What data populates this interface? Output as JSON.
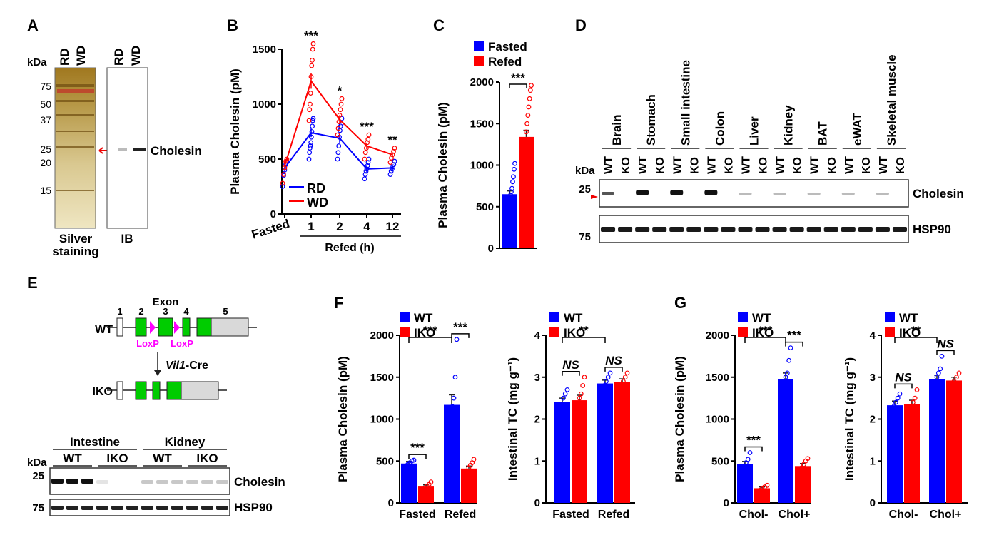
{
  "panels": {
    "A": "A",
    "B": "B",
    "C": "C",
    "D": "D",
    "E": "E",
    "F": "F",
    "G": "G"
  },
  "colors": {
    "blue": "#0000ff",
    "red": "#ff0000",
    "green": "#00cc00",
    "magenta": "#ff00ff",
    "gray": "#d9d9d9"
  },
  "panelA": {
    "kda": "kDa",
    "lanes": [
      "RD",
      "WD",
      "RD",
      "WD"
    ],
    "markers": [
      "75",
      "50",
      "37",
      "25",
      "20",
      "15"
    ],
    "band_label": "Cholesin",
    "captions": {
      "silver_1": "Silver",
      "silver_2": "staining",
      "ib": "IB"
    }
  },
  "chart_data": [
    {
      "id": "B",
      "type": "line",
      "ylabel": "Plasma Cholesin (pM)",
      "xlabel": "Refed (h)",
      "categories": [
        "Fasted",
        "1",
        "2",
        "4",
        "12"
      ],
      "ylim": [
        0,
        1500
      ],
      "yticks": [
        "0",
        "500",
        "1000",
        "1500"
      ],
      "legend": [
        {
          "name": "RD",
          "color": "#0000ff"
        },
        {
          "name": "WD",
          "color": "#ff0000"
        }
      ],
      "series": [
        {
          "name": "RD",
          "color": "#0000ff",
          "values": [
            420,
            740,
            690,
            410,
            420
          ],
          "sem": [
            40,
            40,
            40,
            30,
            20
          ]
        },
        {
          "name": "WD",
          "color": "#ff0000",
          "values": [
            440,
            1210,
            860,
            620,
            540
          ],
          "sem": [
            40,
            70,
            40,
            30,
            20
          ]
        }
      ],
      "sig": [
        "",
        "***",
        "*",
        "***",
        "**"
      ],
      "points": {
        "RD": [
          [
            250,
            350,
            400,
            450,
            480
          ],
          [
            500,
            560,
            600,
            620,
            650,
            700,
            750,
            800,
            850,
            870
          ],
          [
            500,
            560,
            620,
            700,
            760,
            800,
            820,
            870
          ],
          [
            320,
            360,
            390,
            410,
            440,
            470,
            500
          ],
          [
            360,
            390,
            410,
            430,
            450,
            480
          ]
        ],
        "WD": [
          [
            280,
            360,
            420,
            480,
            500
          ],
          [
            850,
            950,
            1000,
            1100,
            1250,
            1350,
            1400,
            1500,
            1550
          ],
          [
            720,
            780,
            840,
            900,
            950,
            1000,
            1050
          ],
          [
            500,
            560,
            600,
            650,
            680,
            720
          ],
          [
            470,
            510,
            540,
            570,
            600
          ]
        ]
      }
    },
    {
      "id": "C",
      "type": "bar",
      "ylabel": "Plasma Cholesin (pM)",
      "categories": [
        "Fasted",
        "Refed"
      ],
      "ylim": [
        0,
        2000
      ],
      "yticks": [
        "0",
        "500",
        "1000",
        "1500",
        "2000"
      ],
      "legend": [
        {
          "name": "Fasted",
          "color": "#0000ff"
        },
        {
          "name": "Refed",
          "color": "#ff0000"
        }
      ],
      "values": [
        650,
        1340
      ],
      "sem": [
        40,
        80
      ],
      "sig": "***",
      "points": [
        [
          150,
          250,
          350,
          420,
          480,
          520,
          560,
          600,
          640,
          680,
          720,
          800,
          860,
          950,
          1020
        ],
        [
          900,
          1000,
          1100,
          1200,
          1250,
          1300,
          1400,
          1500,
          1600,
          1700,
          1800,
          1900,
          1960
        ]
      ]
    },
    {
      "id": "F1",
      "type": "bar",
      "ylabel": "Plasma Cholesin (pM)",
      "categories": [
        "Fasted",
        "Refed"
      ],
      "ylim": [
        0,
        2000
      ],
      "yticks": [
        "0",
        "500",
        "1000",
        "1500",
        "2000"
      ],
      "legend": [
        {
          "name": "WT",
          "color": "#0000ff"
        },
        {
          "name": "IKO",
          "color": "#ff0000"
        }
      ],
      "series": [
        {
          "name": "WT",
          "color": "#0000ff",
          "values": [
            470,
            1170
          ],
          "sem": [
            25,
            120
          ],
          "points": [
            [
              420,
              440,
              460,
              480,
              500,
              510
            ],
            [
              800,
              900,
              1000,
              1050,
              1150,
              1250,
              1500,
              1950
            ]
          ]
        },
        {
          "name": "IKO",
          "color": "#ff0000",
          "values": [
            195,
            410
          ],
          "sem": [
            20,
            30
          ],
          "points": [
            [
              120,
              150,
              180,
              200,
              220,
              250
            ],
            [
              300,
              350,
              380,
              420,
              450,
              480,
              520
            ]
          ]
        }
      ],
      "sig_within": [
        "***",
        "***"
      ],
      "sig_between": "***"
    },
    {
      "id": "F2",
      "type": "bar",
      "ylabel": "Intestinal TC (mg g⁻¹)",
      "categories": [
        "Fasted",
        "Refed"
      ],
      "ylim": [
        0,
        4
      ],
      "yticks": [
        "0",
        "1",
        "2",
        "3",
        "4"
      ],
      "legend": [
        {
          "name": "WT",
          "color": "#0000ff"
        },
        {
          "name": "IKO",
          "color": "#ff0000"
        }
      ],
      "series": [
        {
          "name": "WT",
          "color": "#0000ff",
          "values": [
            2.4,
            2.85
          ],
          "sem": [
            0.1,
            0.08
          ],
          "points": [
            [
              1.9,
              2.1,
              2.3,
              2.5,
              2.6,
              2.7
            ],
            [
              2.6,
              2.7,
              2.8,
              2.9,
              3.0,
              3.1
            ]
          ]
        },
        {
          "name": "IKO",
          "color": "#ff0000",
          "values": [
            2.45,
            2.88
          ],
          "sem": [
            0.12,
            0.08
          ],
          "points": [
            [
              1.8,
              2.0,
              2.3,
              2.5,
              2.6,
              2.8,
              3.0
            ],
            [
              2.6,
              2.7,
              2.8,
              2.9,
              3.0,
              3.1
            ]
          ]
        }
      ],
      "sig_within": [
        "NS",
        "NS"
      ],
      "sig_between": "**"
    },
    {
      "id": "G1",
      "type": "bar",
      "ylabel": "Plasma Cholesin (pM)",
      "categories": [
        "Chol-",
        "Chol+"
      ],
      "ylim": [
        0,
        2000
      ],
      "yticks": [
        "0",
        "500",
        "1000",
        "1500",
        "2000"
      ],
      "legend": [
        {
          "name": "WT",
          "color": "#0000ff"
        },
        {
          "name": "IKO",
          "color": "#ff0000"
        }
      ],
      "series": [
        {
          "name": "WT",
          "color": "#0000ff",
          "values": [
            460,
            1480
          ],
          "sem": [
            35,
            70
          ],
          "points": [
            [
              330,
              380,
              440,
              480,
              520,
              600
            ],
            [
              1200,
              1300,
              1450,
              1500,
              1550,
              1700,
              1850
            ]
          ]
        },
        {
          "name": "IKO",
          "color": "#ff0000",
          "values": [
            175,
            440
          ],
          "sem": [
            15,
            30
          ],
          "points": [
            [
              130,
              150,
              170,
              190,
              210
            ],
            [
              300,
              360,
              420,
              460,
              500,
              530
            ]
          ]
        }
      ],
      "sig_within": [
        "***",
        "***"
      ],
      "sig_between": "***"
    },
    {
      "id": "G2",
      "type": "bar",
      "ylabel": "Intestinal TC (mg g⁻¹)",
      "categories": [
        "Chol-",
        "Chol+"
      ],
      "ylim": [
        0,
        4
      ],
      "yticks": [
        "0",
        "1",
        "2",
        "3",
        "4"
      ],
      "legend": [
        {
          "name": "WT",
          "color": "#0000ff"
        },
        {
          "name": "IKO",
          "color": "#ff0000"
        }
      ],
      "series": [
        {
          "name": "WT",
          "color": "#0000ff",
          "values": [
            2.33,
            2.95
          ],
          "sem": [
            0.1,
            0.1
          ],
          "points": [
            [
              2.0,
              2.2,
              2.3,
              2.4,
              2.5,
              2.6
            ],
            [
              2.6,
              2.8,
              2.9,
              3.0,
              3.1,
              3.2,
              3.5
            ]
          ]
        },
        {
          "name": "IKO",
          "color": "#ff0000",
          "values": [
            2.35,
            2.92
          ],
          "sem": [
            0.1,
            0.08
          ],
          "points": [
            [
              1.9,
              2.1,
              2.3,
              2.4,
              2.5,
              2.7
            ],
            [
              2.7,
              2.8,
              2.9,
              3.0,
              3.1
            ]
          ]
        }
      ],
      "sig_within": [
        "NS",
        "NS"
      ],
      "sig_between": "**"
    }
  ],
  "panelD": {
    "tissues": [
      "Brain",
      "Stomach",
      "Small intestine",
      "Colon",
      "Liver",
      "Kidney",
      "BAT",
      "eWAT",
      "Skeletal muscle"
    ],
    "genotypes": [
      "WT",
      "KO"
    ],
    "kda": "kDa",
    "markers": [
      "25",
      "75"
    ],
    "blots": [
      "Cholesin",
      "HSP90"
    ]
  },
  "panelE": {
    "exon_title": "Exon",
    "exons": [
      "1",
      "2",
      "3",
      "4",
      "5"
    ],
    "wt": "WT",
    "iko": "IKO",
    "loxp": "LoxP",
    "cre_gene": "Vil1",
    "cre_suffix": "-Cre",
    "kda": "kDa",
    "tissues": [
      "Intestine",
      "Kidney"
    ],
    "genotypes": [
      "WT",
      "IKO"
    ],
    "markers": [
      "25",
      "75"
    ],
    "blots": [
      "Cholesin",
      "HSP90"
    ]
  }
}
